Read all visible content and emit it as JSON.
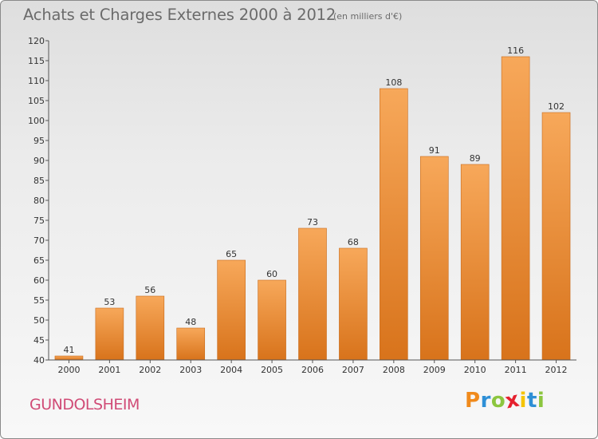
{
  "header": {
    "title": "Achats et Charges Externes 2000 à 2012",
    "unit": "(en milliers d'€)"
  },
  "footer": {
    "place": "GUNDOLSHEIM",
    "logo": {
      "letters": [
        "P",
        "r",
        "o",
        "x",
        "i",
        "t",
        "i"
      ],
      "colors": [
        "#f08a1c",
        "#2e8fd6",
        "#8cc63f",
        "#e5202e",
        "#f5c400",
        "#2e8fd6",
        "#8cc63f"
      ]
    }
  },
  "chart_data": {
    "type": "bar",
    "categories": [
      "2000",
      "2001",
      "2002",
      "2003",
      "2004",
      "2005",
      "2006",
      "2007",
      "2008",
      "2009",
      "2010",
      "2011",
      "2012"
    ],
    "values": [
      41,
      53,
      56,
      48,
      65,
      60,
      73,
      68,
      108,
      91,
      89,
      116,
      102
    ],
    "title": "Achats et Charges Externes 2000 à 2012",
    "subtitle": "(en milliers d'€)",
    "xlabel": "",
    "ylabel": "",
    "ylim": [
      40,
      120
    ],
    "yticks": [
      40,
      45,
      50,
      55,
      60,
      65,
      70,
      75,
      80,
      85,
      90,
      95,
      100,
      105,
      110,
      115,
      120
    ],
    "grid": false,
    "legend": "none",
    "colors": {
      "bar_top": "#f7a85a",
      "bar_bottom": "#d8731b",
      "bar_edge": "#c86b1c",
      "axis": "#555555",
      "text": "#333333",
      "title": "#6b6b6b",
      "place": "#d04b76"
    }
  }
}
